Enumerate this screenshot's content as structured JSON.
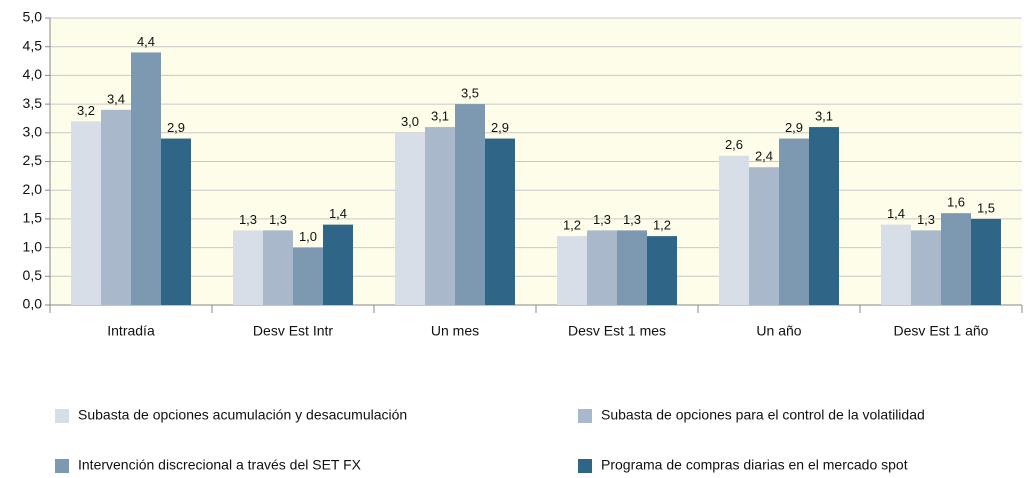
{
  "chart_data": {
    "type": "bar",
    "categories": [
      "Intradía",
      "Desv Est Intr",
      "Un mes",
      "Desv Est 1 mes",
      "Un año",
      "Desv Est 1 año"
    ],
    "series": [
      {
        "name": "Subasta de opciones acumulación y desacumulación",
        "color": "#d7dee7",
        "values": [
          3.2,
          1.3,
          3.0,
          1.2,
          2.6,
          1.4
        ],
        "value_labels": [
          "3,2",
          "1,3",
          "3,0",
          "1,2",
          "2,6",
          "1,4"
        ]
      },
      {
        "name": "Subasta de opciones para el control de la volatilidad",
        "color": "#a9b8ca",
        "values": [
          3.4,
          1.3,
          3.1,
          1.3,
          2.4,
          1.3
        ],
        "value_labels": [
          "3,4",
          "1,3",
          "3,1",
          "1,3",
          "2,4",
          "1,3"
        ]
      },
      {
        "name": "Intervención discrecional a través del SET FX",
        "color": "#7d99b1",
        "values": [
          4.4,
          1.0,
          3.5,
          1.3,
          2.9,
          1.6
        ],
        "value_labels": [
          "4,4",
          "1,0",
          "3,5",
          "1,3",
          "2,9",
          "1,6"
        ]
      },
      {
        "name": "Programa de compras diarias en el mercado spot",
        "color": "#2f6586",
        "values": [
          2.9,
          1.4,
          2.9,
          1.2,
          3.1,
          1.5
        ],
        "value_labels": [
          "2,9",
          "1,4",
          "2,9",
          "1,2",
          "3,1",
          "1,5"
        ]
      }
    ],
    "ylim": [
      0,
      5
    ],
    "yticks": [
      {
        "value": 0,
        "label": "0,0"
      },
      {
        "value": 0.5,
        "label": "0,5"
      },
      {
        "value": 1,
        "label": "1,0"
      },
      {
        "value": 1.5,
        "label": "1,5"
      },
      {
        "value": 2,
        "label": "2,0"
      },
      {
        "value": 2.5,
        "label": "2,5"
      },
      {
        "value": 3,
        "label": "3,0"
      },
      {
        "value": 3.5,
        "label": "3,5"
      },
      {
        "value": 4,
        "label": "4,0"
      },
      {
        "value": 4.5,
        "label": "4,5"
      },
      {
        "value": 5,
        "label": "5,0"
      }
    ],
    "grid": true,
    "legend": "bottom",
    "plot_background": "#fdfdea"
  }
}
